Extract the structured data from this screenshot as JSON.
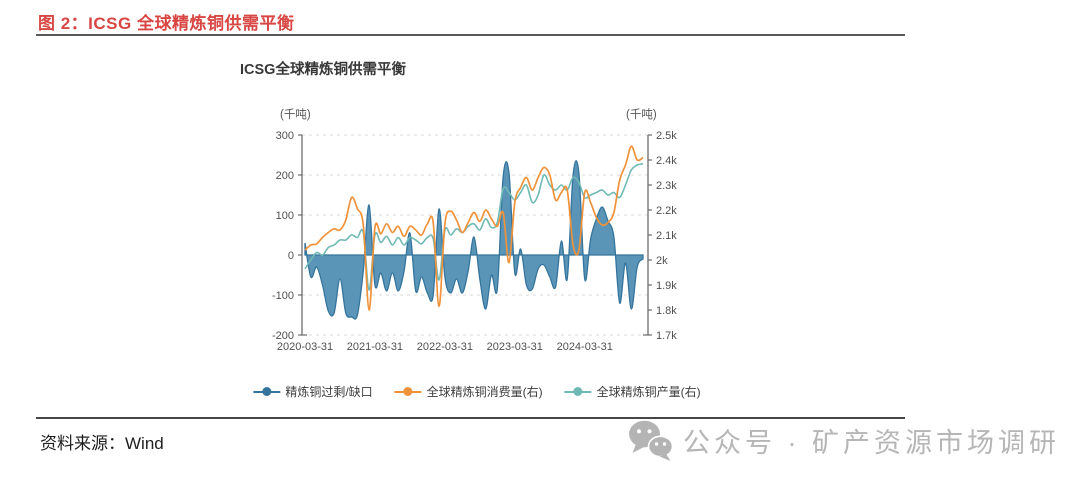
{
  "header": {
    "caption": "图 2：ICSG 全球精炼铜供需平衡",
    "accent_color": "#d84743"
  },
  "chart_data": {
    "type": "area",
    "title": "ICSG全球精炼铜供需平衡",
    "x_start": "2020-03-31",
    "x_freq": "monthly",
    "x_tick_labels": [
      "2020-03-31",
      "2021-03-31",
      "2022-03-31",
      "2023-03-31",
      "2024-03-31"
    ],
    "left_axis": {
      "unit": "(千吨)",
      "ticks": [
        300,
        200,
        100,
        0,
        -100,
        -200
      ],
      "range": [
        -200,
        300
      ]
    },
    "right_axis": {
      "unit": "(千吨)",
      "tick_labels": [
        "2.5k",
        "2.4k",
        "2.3k",
        "2.2k",
        "2.1k",
        "2k",
        "1.9k",
        "1.8k",
        "1.7k"
      ],
      "range": [
        1700,
        2500
      ]
    },
    "grid": "dashed-horizontal",
    "legend_position": "bottom",
    "series": [
      {
        "name": "精炼铜过剩/缺口",
        "type": "area",
        "axis": "left",
        "color": "#35749c",
        "fill": "#4d8db3",
        "values": [
          30,
          -55,
          -30,
          -75,
          -140,
          -145,
          -60,
          -145,
          -155,
          -150,
          -40,
          125,
          -75,
          -45,
          -90,
          -45,
          -90,
          -40,
          55,
          -90,
          -55,
          -95,
          -100,
          115,
          -55,
          -95,
          -60,
          -95,
          -40,
          45,
          -60,
          -135,
          -50,
          -85,
          195,
          205,
          -45,
          15,
          -75,
          -85,
          -35,
          -25,
          -55,
          -80,
          35,
          -60,
          200,
          205,
          -60,
          40,
          90,
          120,
          85,
          45,
          -120,
          -20,
          -135,
          -30,
          -10
        ]
      },
      {
        "name": "全球精炼铜消费量(右)",
        "type": "line",
        "axis": "right",
        "color": "#f0923a",
        "values": [
          2040,
          2060,
          2065,
          2090,
          2110,
          2125,
          2120,
          2160,
          2250,
          2205,
          2140,
          1800,
          2130,
          2105,
          2145,
          2110,
          2135,
          2095,
          2135,
          2120,
          2100,
          2145,
          2150,
          1815,
          2145,
          2195,
          2160,
          2110,
          2150,
          2190,
          2155,
          2200,
          2165,
          2135,
          2190,
          1990,
          2230,
          2290,
          2330,
          2280,
          2330,
          2370,
          2340,
          2240,
          2270,
          2280,
          2060,
          2040,
          2270,
          2230,
          2170,
          2140,
          2150,
          2190,
          2320,
          2380,
          2455,
          2400,
          2410
        ]
      },
      {
        "name": "全球精炼铜产量(右)",
        "type": "line",
        "axis": "right",
        "color": "#6fb9b4",
        "values": [
          1965,
          2000,
          2030,
          2020,
          2050,
          2060,
          2080,
          2080,
          2100,
          2090,
          2110,
          1880,
          2100,
          2070,
          2095,
          2060,
          2090,
          2060,
          2090,
          2080,
          2065,
          2090,
          2085,
          1920,
          2120,
          2100,
          2125,
          2110,
          2135,
          2145,
          2120,
          2165,
          2130,
          2150,
          2285,
          2270,
          2240,
          2270,
          2300,
          2230,
          2260,
          2340,
          2300,
          2280,
          2300,
          2280,
          2330,
          2310,
          2250,
          2260,
          2270,
          2280,
          2260,
          2270,
          2250,
          2300,
          2360,
          2380,
          2385
        ]
      }
    ]
  },
  "source": {
    "text": "资料来源：Wind"
  },
  "watermark": {
    "text": "公众号 · 矿产资源市场调研",
    "icon": "wechat-icon",
    "color": "#b6b6b6"
  }
}
